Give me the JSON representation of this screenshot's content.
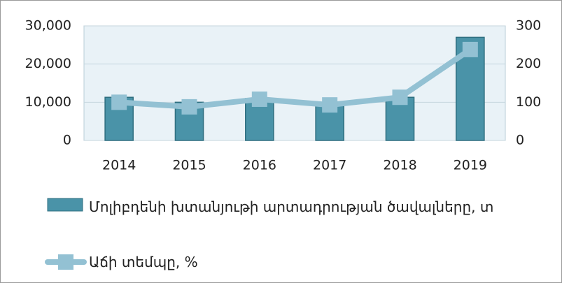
{
  "chart_data": {
    "type": "bar",
    "categories": [
      "2014",
      "2015",
      "2016",
      "2017",
      "2018",
      "2019"
    ],
    "series": [
      {
        "name": "Մոլիբդենի խտանյութի արտադրության ծավալները, տ",
        "type": "bar",
        "color": "#4a93a8",
        "values": [
          11300,
          10000,
          11000,
          9500,
          11300,
          27000
        ]
      },
      {
        "name": "Աճի տեմպը, %",
        "type": "line",
        "axis": "y2",
        "color": "#93c1d3",
        "values": [
          100,
          88,
          108,
          93,
          113,
          238
        ]
      }
    ],
    "ylim": [
      0,
      30000
    ],
    "yticks": [
      0,
      {
        "value": 10000,
        "label": "10,000"
      },
      {
        "value": 20000,
        "label": "20,000"
      },
      {
        "value": 30000,
        "label": "30,000"
      }
    ],
    "y2lim": [
      0,
      300
    ],
    "y2ticks": [
      0,
      100,
      200,
      300
    ],
    "grid": true
  }
}
